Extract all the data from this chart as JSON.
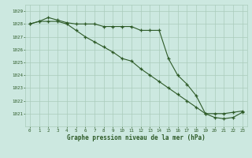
{
  "title": "Graphe pression niveau de la mer (hPa)",
  "bg_color": "#cce8e0",
  "grid_color": "#aaccbb",
  "line_color": "#2d5a27",
  "marker_color": "#2d5a27",
  "x_values": [
    0,
    1,
    2,
    3,
    4,
    5,
    6,
    7,
    8,
    9,
    10,
    11,
    12,
    13,
    14,
    15,
    16,
    17,
    18,
    19,
    20,
    21,
    22,
    23
  ],
  "series1": [
    1028.0,
    1028.2,
    1028.5,
    1028.3,
    1028.1,
    1028.0,
    1028.0,
    1028.0,
    1027.8,
    1027.8,
    1027.8,
    1027.8,
    1027.5,
    1027.5,
    1027.5,
    1025.3,
    1024.0,
    1023.3,
    1022.4,
    1021.0,
    1021.0,
    1021.0,
    1021.1,
    1021.2
  ],
  "series2": [
    1028.0,
    1028.2,
    1028.2,
    1028.2,
    1028.0,
    1027.5,
    1027.0,
    1026.6,
    1026.2,
    1025.8,
    1025.3,
    1025.1,
    1024.5,
    1024.0,
    1023.5,
    1023.0,
    1022.5,
    1022.0,
    1021.5,
    1021.0,
    1020.7,
    1020.6,
    1020.7,
    1021.1
  ],
  "ylim_min": 1020.0,
  "ylim_max": 1029.5,
  "yticks": [
    1021,
    1022,
    1023,
    1024,
    1025,
    1026,
    1027,
    1028,
    1029
  ],
  "xticks": [
    0,
    1,
    2,
    3,
    4,
    5,
    6,
    7,
    8,
    9,
    10,
    11,
    12,
    13,
    14,
    15,
    16,
    17,
    18,
    19,
    20,
    21,
    22,
    23
  ]
}
